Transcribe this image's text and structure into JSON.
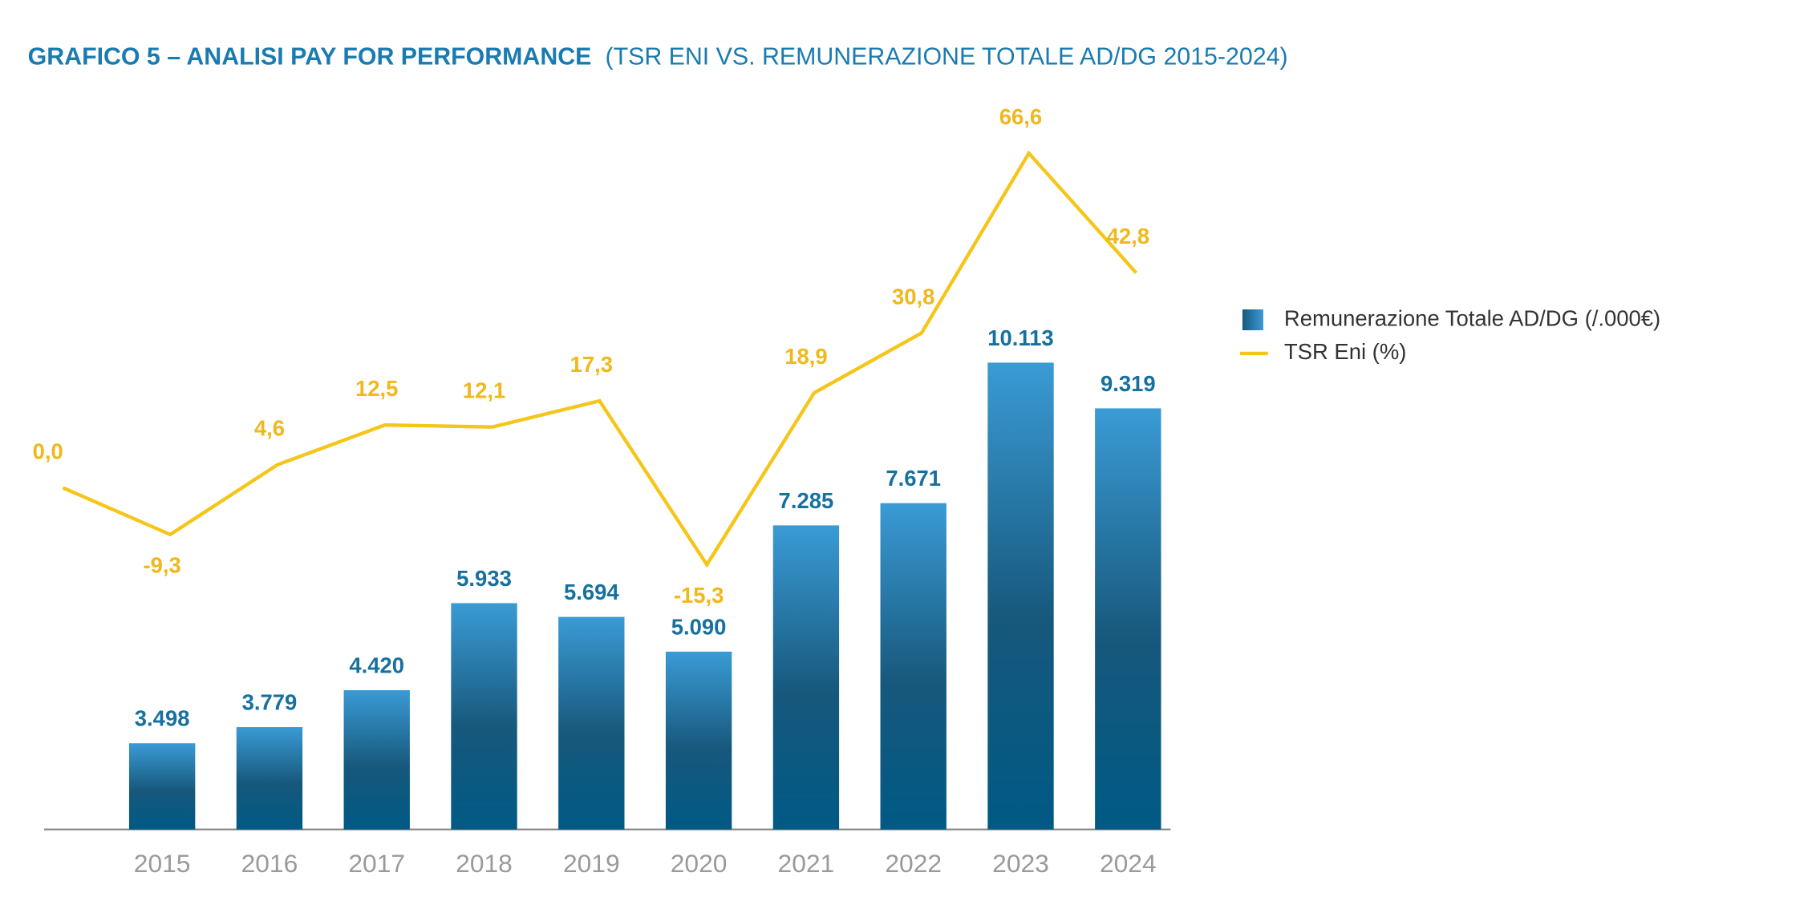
{
  "chart_data": {
    "type": "bar",
    "title": "GRAFICO 5 – ANALISI PAY FOR PERFORMANCE",
    "subtitle": "(TSR ENI VS. REMUNERAZIONE TOTALE AD/DG 2015-2024)",
    "categories": [
      null,
      "2015",
      "2016",
      "2017",
      "2018",
      "2019",
      "2020",
      "2021",
      "2022",
      "2023",
      "2024"
    ],
    "ylim": [
      2000,
      14400
    ],
    "y2lim": [
      -68,
      74
    ],
    "grid": false,
    "legend": "right",
    "series": [
      {
        "name": "Remunerazione Totale AD/DG (/.000€)",
        "type": "bar",
        "color": "#005a85",
        "color_top": "#3a9bd5",
        "values": [
          null,
          3498,
          3779,
          4420,
          5933,
          5694,
          5090,
          7285,
          7671,
          10113,
          9319
        ],
        "value_labels": [
          null,
          "3.498",
          "3.779",
          "4.420",
          "5.933",
          "5.694",
          "5.090",
          "7.285",
          "7.671",
          "10.113",
          "9.319"
        ],
        "label_color": "#17709e"
      },
      {
        "name": "TSR Eni (%)",
        "type": "line",
        "axis": "y2",
        "color": "#f5c518",
        "values": [
          0.0,
          -9.3,
          4.6,
          12.5,
          12.1,
          17.3,
          -15.3,
          18.9,
          30.8,
          66.6,
          42.8
        ],
        "value_labels": [
          "0,0",
          "-9,3",
          "4,6",
          "12,5",
          "12,1",
          "17,3",
          "-15,3",
          "18,9",
          "30,8",
          "66,6",
          "42,8"
        ],
        "label_color": "#f0b81a"
      }
    ]
  }
}
